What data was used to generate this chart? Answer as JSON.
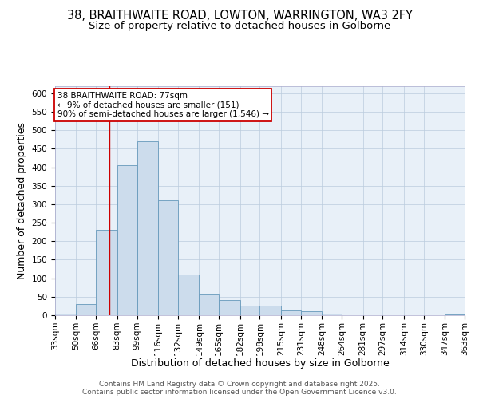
{
  "title_line1": "38, BRAITHWAITE ROAD, LOWTON, WARRINGTON, WA3 2FY",
  "title_line2": "Size of property relative to detached houses in Golborne",
  "xlabel": "Distribution of detached houses by size in Golborne",
  "ylabel": "Number of detached properties",
  "bar_color": "#ccdcec",
  "bar_edge_color": "#6699bb",
  "grid_color": "#bbccdd",
  "background_color": "#e8f0f8",
  "bins": [
    33,
    50,
    66,
    83,
    99,
    116,
    132,
    149,
    165,
    182,
    198,
    215,
    231,
    248,
    264,
    281,
    297,
    314,
    330,
    347,
    363
  ],
  "bin_labels": [
    "33sqm",
    "50sqm",
    "66sqm",
    "83sqm",
    "99sqm",
    "116sqm",
    "132sqm",
    "149sqm",
    "165sqm",
    "182sqm",
    "198sqm",
    "215sqm",
    "231sqm",
    "248sqm",
    "264sqm",
    "281sqm",
    "297sqm",
    "314sqm",
    "330sqm",
    "347sqm",
    "363sqm"
  ],
  "counts": [
    5,
    30,
    230,
    405,
    470,
    310,
    110,
    57,
    40,
    25,
    25,
    14,
    10,
    5,
    0,
    0,
    0,
    0,
    0,
    3
  ],
  "ylim": [
    0,
    620
  ],
  "yticks": [
    0,
    50,
    100,
    150,
    200,
    250,
    300,
    350,
    400,
    450,
    500,
    550,
    600
  ],
  "red_line_x": 77,
  "annotation_text": "38 BRAITHWAITE ROAD: 77sqm\n← 9% of detached houses are smaller (151)\n90% of semi-detached houses are larger (1,546) →",
  "annotation_box_color": "#ffffff",
  "annotation_box_edge": "#cc0000",
  "red_line_color": "#cc0000",
  "footer_text": "Contains HM Land Registry data © Crown copyright and database right 2025.\nContains public sector information licensed under the Open Government Licence v3.0.",
  "title_fontsize": 10.5,
  "subtitle_fontsize": 9.5,
  "axis_label_fontsize": 9,
  "tick_fontsize": 7.5,
  "annotation_fontsize": 7.5,
  "footer_fontsize": 6.5
}
